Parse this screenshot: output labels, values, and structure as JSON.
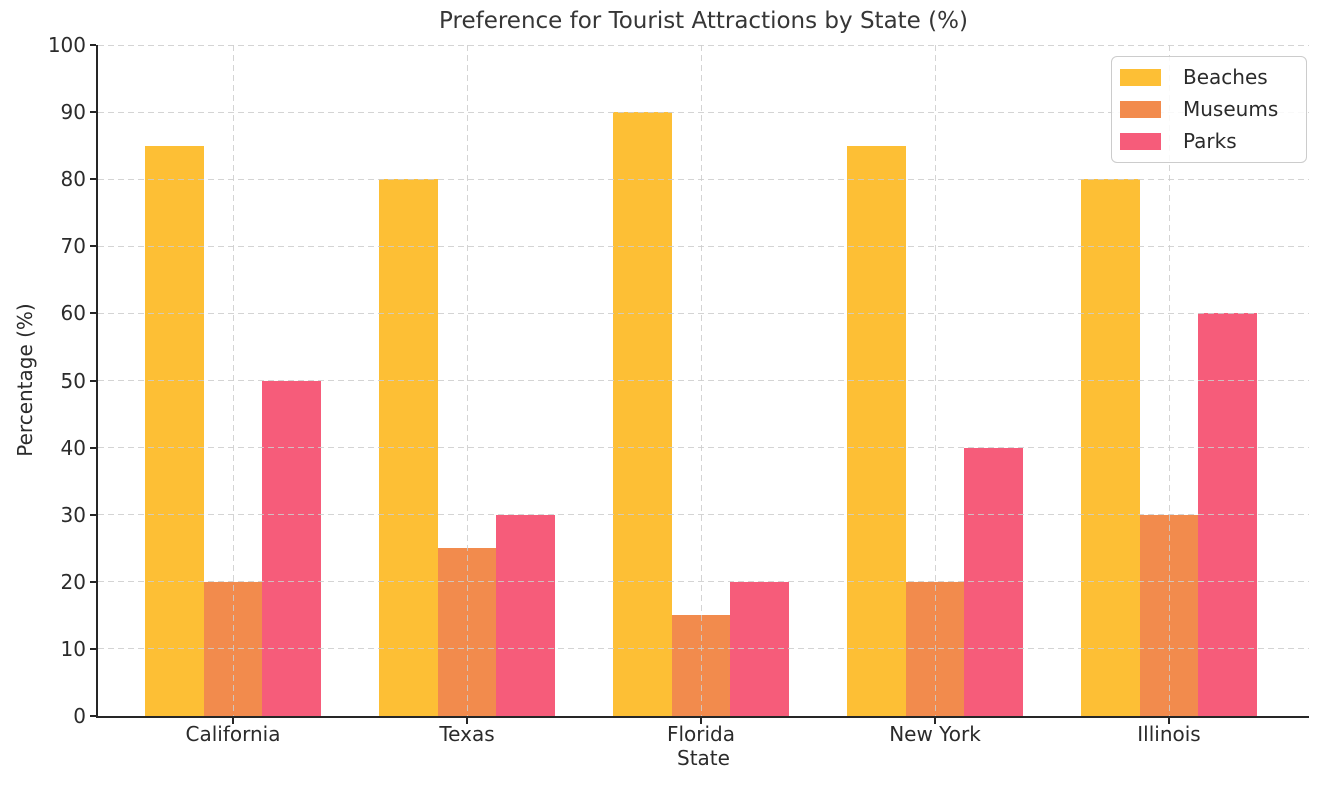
{
  "chart_data": {
    "type": "bar",
    "title": "Preference for Tourist Attractions by State (%)",
    "xlabel": "State",
    "ylabel": "Percentage (%)",
    "categories": [
      "California",
      "Texas",
      "Florida",
      "New York",
      "Illinois"
    ],
    "series": [
      {
        "name": "Beaches",
        "color": "#FDBF35",
        "values": [
          85,
          80,
          90,
          85,
          80
        ]
      },
      {
        "name": "Museums",
        "color": "#F28B4D",
        "values": [
          20,
          25,
          15,
          20,
          30
        ]
      },
      {
        "name": "Parks",
        "color": "#F65C7A",
        "values": [
          50,
          30,
          20,
          40,
          60
        ]
      }
    ],
    "ylim": [
      0,
      100
    ],
    "yticks": [
      0,
      10,
      20,
      30,
      40,
      50,
      60,
      70,
      80,
      90,
      100
    ],
    "grid": "dashed, both axes, drawn over bars",
    "legend_position": "upper right",
    "axis_color": "#262626",
    "grid_color": "#cdcdcd",
    "background_color": "#ffffff"
  }
}
